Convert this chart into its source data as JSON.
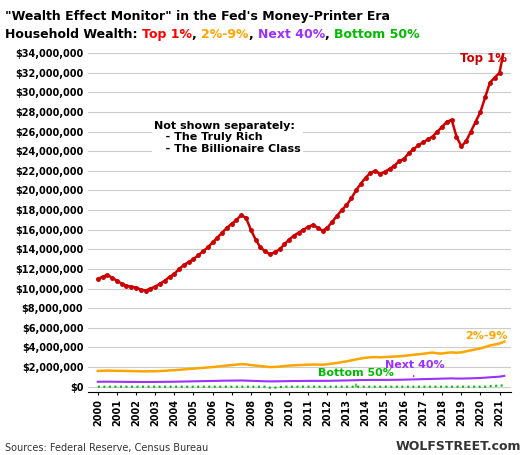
{
  "title_line1": "\"Wealth Effect Monitor\" in the Fed's Money-Printer Era",
  "title_line2_prefix": "Household Wealth: ",
  "title_line2_parts": [
    {
      "text": "Top 1%",
      "color": "#FF0000"
    },
    {
      "text": ", ",
      "color": "#000000"
    },
    {
      "text": "2%-9%",
      "color": "#FFA500"
    },
    {
      "text": ", ",
      "color": "#000000"
    },
    {
      "text": "Next 40%",
      "color": "#9B30FF"
    },
    {
      "text": ", ",
      "color": "#000000"
    },
    {
      "text": "Bottom 50%",
      "color": "#00BB00"
    }
  ],
  "source_text": "Sources: Federal Reserve, Census Bureau",
  "watermark": "WOLFSTREET.com",
  "years": [
    2000.0,
    2000.25,
    2000.5,
    2000.75,
    2001.0,
    2001.25,
    2001.5,
    2001.75,
    2002.0,
    2002.25,
    2002.5,
    2002.75,
    2003.0,
    2003.25,
    2003.5,
    2003.75,
    2004.0,
    2004.25,
    2004.5,
    2004.75,
    2005.0,
    2005.25,
    2005.5,
    2005.75,
    2006.0,
    2006.25,
    2006.5,
    2006.75,
    2007.0,
    2007.25,
    2007.5,
    2007.75,
    2008.0,
    2008.25,
    2008.5,
    2008.75,
    2009.0,
    2009.25,
    2009.5,
    2009.75,
    2010.0,
    2010.25,
    2010.5,
    2010.75,
    2011.0,
    2011.25,
    2011.5,
    2011.75,
    2012.0,
    2012.25,
    2012.5,
    2012.75,
    2013.0,
    2013.25,
    2013.5,
    2013.75,
    2014.0,
    2014.25,
    2014.5,
    2014.75,
    2015.0,
    2015.25,
    2015.5,
    2015.75,
    2016.0,
    2016.25,
    2016.5,
    2016.75,
    2017.0,
    2017.25,
    2017.5,
    2017.75,
    2018.0,
    2018.25,
    2018.5,
    2018.75,
    2019.0,
    2019.25,
    2019.5,
    2019.75,
    2020.0,
    2020.25,
    2020.5,
    2020.75,
    2021.0,
    2021.25
  ],
  "top1": [
    11000000,
    11200000,
    11400000,
    11100000,
    10800000,
    10500000,
    10300000,
    10200000,
    10100000,
    9900000,
    9800000,
    10000000,
    10200000,
    10500000,
    10800000,
    11200000,
    11500000,
    12000000,
    12400000,
    12700000,
    13000000,
    13400000,
    13800000,
    14200000,
    14700000,
    15200000,
    15700000,
    16200000,
    16600000,
    17000000,
    17500000,
    17200000,
    16000000,
    15000000,
    14200000,
    13800000,
    13500000,
    13700000,
    14000000,
    14500000,
    15000000,
    15400000,
    15700000,
    16000000,
    16300000,
    16500000,
    16200000,
    15900000,
    16200000,
    16800000,
    17400000,
    18000000,
    18500000,
    19200000,
    20000000,
    20700000,
    21300000,
    21800000,
    22000000,
    21700000,
    21900000,
    22200000,
    22500000,
    23000000,
    23200000,
    23800000,
    24200000,
    24600000,
    24900000,
    25200000,
    25500000,
    26000000,
    26500000,
    27000000,
    27200000,
    25500000,
    24500000,
    25000000,
    26000000,
    27000000,
    28000000,
    29500000,
    31000000,
    31500000,
    32000000,
    34500000
  ],
  "pct2to9": [
    1600000,
    1620000,
    1640000,
    1630000,
    1620000,
    1610000,
    1600000,
    1590000,
    1580000,
    1570000,
    1560000,
    1570000,
    1580000,
    1600000,
    1620000,
    1650000,
    1680000,
    1720000,
    1760000,
    1800000,
    1840000,
    1880000,
    1920000,
    1960000,
    2000000,
    2050000,
    2100000,
    2150000,
    2200000,
    2250000,
    2300000,
    2280000,
    2200000,
    2150000,
    2100000,
    2050000,
    2000000,
    2020000,
    2050000,
    2100000,
    2150000,
    2180000,
    2200000,
    2220000,
    2240000,
    2260000,
    2250000,
    2240000,
    2280000,
    2350000,
    2420000,
    2500000,
    2580000,
    2680000,
    2780000,
    2870000,
    2950000,
    3000000,
    3020000,
    3000000,
    3020000,
    3050000,
    3070000,
    3100000,
    3130000,
    3200000,
    3250000,
    3300000,
    3350000,
    3420000,
    3480000,
    3400000,
    3380000,
    3450000,
    3500000,
    3450000,
    3500000,
    3600000,
    3700000,
    3800000,
    3900000,
    4050000,
    4200000,
    4300000,
    4400000,
    4600000
  ],
  "next40": [
    500000,
    505000,
    510000,
    505000,
    500000,
    495000,
    490000,
    488000,
    485000,
    480000,
    478000,
    480000,
    485000,
    490000,
    495000,
    500000,
    505000,
    515000,
    525000,
    535000,
    545000,
    555000,
    565000,
    575000,
    585000,
    595000,
    605000,
    615000,
    620000,
    625000,
    630000,
    620000,
    600000,
    580000,
    565000,
    550000,
    540000,
    545000,
    550000,
    560000,
    570000,
    575000,
    580000,
    585000,
    590000,
    595000,
    592000,
    590000,
    595000,
    605000,
    615000,
    625000,
    635000,
    648000,
    660000,
    672000,
    680000,
    688000,
    692000,
    688000,
    690000,
    695000,
    700000,
    708000,
    715000,
    730000,
    742000,
    755000,
    768000,
    782000,
    795000,
    808000,
    820000,
    835000,
    845000,
    830000,
    825000,
    838000,
    852000,
    870000,
    890000,
    920000,
    960000,
    990000,
    1020000,
    1100000
  ],
  "bottom50": [
    0,
    0,
    0,
    0,
    0,
    0,
    0,
    0,
    0,
    0,
    0,
    0,
    0,
    0,
    0,
    0,
    0,
    0,
    0,
    0,
    0,
    0,
    0,
    0,
    0,
    0,
    0,
    0,
    0,
    0,
    0,
    0,
    0,
    0,
    0,
    0,
    -100000,
    -100000,
    -50000,
    0,
    0,
    0,
    0,
    0,
    0,
    0,
    0,
    0,
    0,
    0,
    0,
    0,
    0,
    0,
    0,
    0,
    0,
    0,
    0,
    0,
    0,
    0,
    0,
    0,
    0,
    0,
    0,
    0,
    0,
    0,
    0,
    0,
    0,
    0,
    0,
    0,
    0,
    0,
    0,
    0,
    0,
    0,
    50000,
    80000,
    100000,
    150000
  ],
  "top1_color": "#CC0000",
  "pct2to9_color": "#FFA500",
  "next40_color": "#9B30FF",
  "bottom50_color": "#00BB00",
  "ylim": [
    -500000,
    34000000
  ],
  "yticks": [
    0,
    2000000,
    4000000,
    6000000,
    8000000,
    10000000,
    12000000,
    14000000,
    16000000,
    18000000,
    20000000,
    22000000,
    24000000,
    26000000,
    28000000,
    30000000,
    32000000,
    34000000
  ],
  "ytick_labels": [
    "$0",
    "$2,000,000",
    "$4,000,000",
    "$6,000,000",
    "$8,000,000",
    "$10,000,000",
    "$12,000,000",
    "$14,000,000",
    "$16,000,000",
    "$18,000,000",
    "$20,000,000",
    "$22,000,000",
    "$24,000,000",
    "$26,000,000",
    "$28,000,000",
    "$30,000,000",
    "$32,000,000",
    "$34,000,000"
  ],
  "xtick_years": [
    2000,
    2001,
    2002,
    2003,
    2004,
    2005,
    2006,
    2007,
    2008,
    2009,
    2010,
    2011,
    2012,
    2013,
    2014,
    2015,
    2016,
    2017,
    2018,
    2019,
    2020,
    2021
  ],
  "annotation_text_line1": "Not shown separately:",
  "annotation_text_line2": "   - The Truly Rich",
  "annotation_text_line3": "   - The Billionaire Class",
  "annotation_top1": "Top 1%",
  "annotation_next40": "Next 40%",
  "annotation_bottom50": "Bottom 50%",
  "annotation_2to9": "2%-9%",
  "bg_color": "#FFFFFF",
  "grid_color": "#CCCCCC"
}
